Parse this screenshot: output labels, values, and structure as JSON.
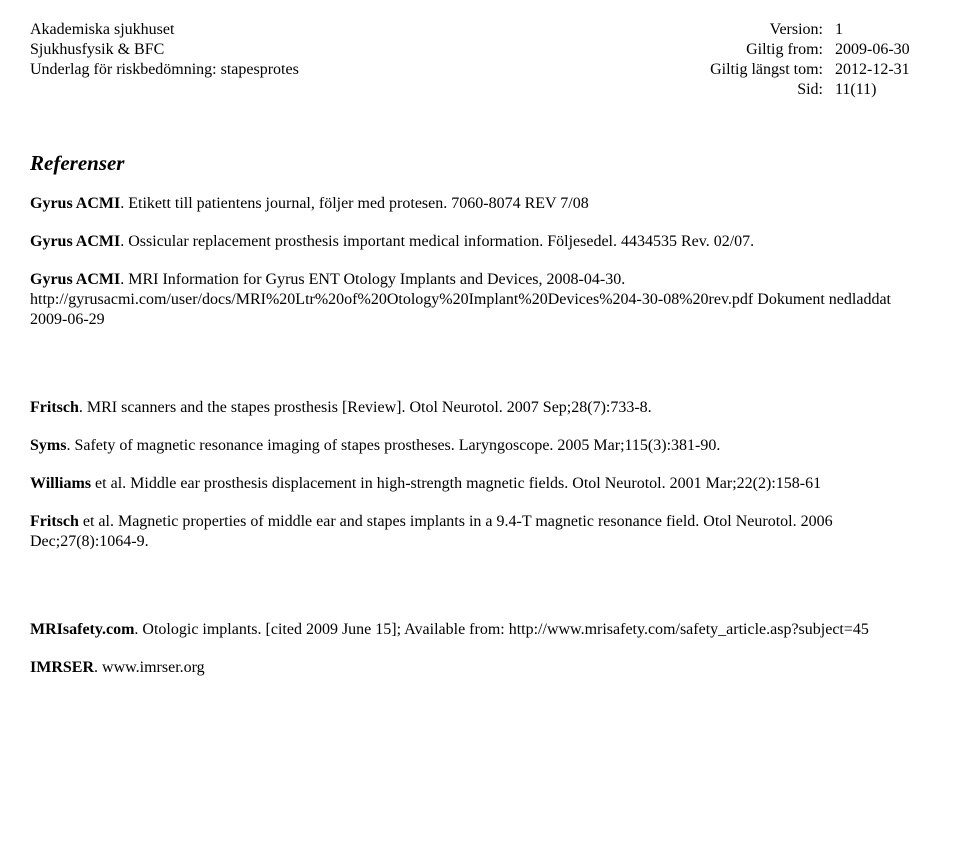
{
  "header": {
    "left": {
      "line1": "Akademiska sjukhuset",
      "line2": "Sjukhusfysik & BFC",
      "line3": "",
      "line4": "Underlag för riskbedömning: stapesprotes"
    },
    "right": {
      "row1_label": "Version:",
      "row1_value": "1",
      "row2_label": "Giltig from:",
      "row2_value": "2009-06-30",
      "row3_label": "Giltig längst tom:",
      "row3_value": "2012-12-31",
      "row4_label": "Sid:",
      "row4_value": "11(11)"
    }
  },
  "section_title": "Referenser",
  "refs": {
    "r1_bold": "Gyrus ACMI",
    "r1_rest": ". Etikett till patientens journal, följer med protesen. 7060-8074 REV 7/08",
    "r2_bold": "Gyrus ACMI",
    "r2_rest": ". Ossicular replacement prosthesis important medical information. Följesedel. 4434535 Rev. 02/07.",
    "r3_bold": "Gyrus ACMI",
    "r3_rest": ". MRI Information for Gyrus ENT Otology Implants and Devices, 2008-04-30. http://gyrusacmi.com/user/docs/MRI%20Ltr%20of%20Otology%20Implant%20Devices%204-30-08%20rev.pdf Dokument nedladdat 2009-06-29",
    "r4_bold": "Fritsch",
    "r4_rest": ". MRI scanners and the stapes prosthesis [Review]. Otol Neurotol. 2007 Sep;28(7):733-8.",
    "r5_bold": "Syms",
    "r5_rest": ". Safety of magnetic resonance imaging of stapes prostheses. Laryngoscope. 2005 Mar;115(3):381-90.",
    "r6_bold": "Williams",
    "r6_rest": " et al. Middle ear prosthesis displacement in high-strength magnetic fields. Otol Neurotol. 2001 Mar;22(2):158-61",
    "r7_bold": "Fritsch",
    "r7_rest": " et al. Magnetic properties of middle ear and stapes implants in a 9.4-T magnetic resonance field. Otol Neurotol. 2006 Dec;27(8):1064-9.",
    "r8_bold": "MRIsafety.com",
    "r8_rest": ". Otologic implants. [cited 2009 June 15]; Available from: http://www.mrisafety.com/safety_article.asp?subject=45",
    "r9_bold": "IMRSER",
    "r9_rest": ". www.imrser.org"
  }
}
